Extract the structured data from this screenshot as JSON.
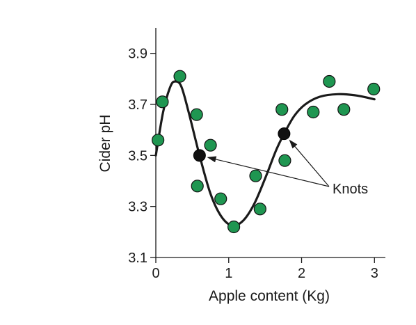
{
  "chart_data": {
    "type": "scatter",
    "xlabel": "Apple content (Kg)",
    "ylabel": "Cider pH",
    "xlim": [
      0,
      3.15
    ],
    "ylim": [
      3.1,
      4.0
    ],
    "xticks": [
      0,
      1,
      2,
      3
    ],
    "yticks": [
      3.1,
      3.3,
      3.5,
      3.7,
      3.9
    ],
    "xtick_labels": [
      "0",
      "1",
      "2",
      "3"
    ],
    "ytick_labels": [
      "3.1",
      "3.3",
      "3.5",
      "3.7",
      "3.9"
    ],
    "grid": false,
    "points_color": "#1f9651",
    "curve_color": "#1a1a1a",
    "knot_color": "#111111",
    "points": [
      {
        "x": 0.03,
        "y": 3.56
      },
      {
        "x": 0.09,
        "y": 3.71
      },
      {
        "x": 0.33,
        "y": 3.81
      },
      {
        "x": 0.56,
        "y": 3.66
      },
      {
        "x": 0.57,
        "y": 3.38
      },
      {
        "x": 0.75,
        "y": 3.54
      },
      {
        "x": 0.89,
        "y": 3.33
      },
      {
        "x": 1.07,
        "y": 3.22
      },
      {
        "x": 1.37,
        "y": 3.42
      },
      {
        "x": 1.43,
        "y": 3.29
      },
      {
        "x": 1.73,
        "y": 3.68
      },
      {
        "x": 1.77,
        "y": 3.48
      },
      {
        "x": 2.16,
        "y": 3.67
      },
      {
        "x": 2.38,
        "y": 3.79
      },
      {
        "x": 2.58,
        "y": 3.68
      },
      {
        "x": 2.99,
        "y": 3.76
      }
    ],
    "curve": [
      {
        "x": 0.0,
        "y": 3.5
      },
      {
        "x": 0.1,
        "y": 3.67
      },
      {
        "x": 0.2,
        "y": 3.77
      },
      {
        "x": 0.27,
        "y": 3.79
      },
      {
        "x": 0.35,
        "y": 3.77
      },
      {
        "x": 0.45,
        "y": 3.67
      },
      {
        "x": 0.6,
        "y": 3.5
      },
      {
        "x": 0.75,
        "y": 3.35
      },
      {
        "x": 0.9,
        "y": 3.26
      },
      {
        "x": 1.05,
        "y": 3.225
      },
      {
        "x": 1.2,
        "y": 3.245
      },
      {
        "x": 1.35,
        "y": 3.31
      },
      {
        "x": 1.5,
        "y": 3.41
      },
      {
        "x": 1.65,
        "y": 3.52
      },
      {
        "x": 1.76,
        "y": 3.585
      },
      {
        "x": 1.9,
        "y": 3.655
      },
      {
        "x": 2.05,
        "y": 3.7
      },
      {
        "x": 2.25,
        "y": 3.73
      },
      {
        "x": 2.5,
        "y": 3.74
      },
      {
        "x": 2.75,
        "y": 3.735
      },
      {
        "x": 3.0,
        "y": 3.72
      }
    ],
    "knots": [
      {
        "x": 0.6,
        "y": 3.5
      },
      {
        "x": 1.76,
        "y": 3.585
      }
    ],
    "annotation": {
      "text": "Knots"
    }
  }
}
